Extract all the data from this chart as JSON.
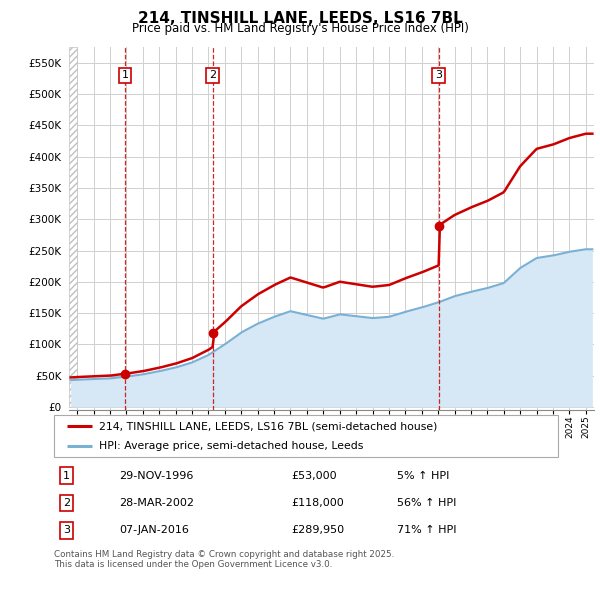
{
  "title": "214, TINSHILL LANE, LEEDS, LS16 7BL",
  "subtitle": "Price paid vs. HM Land Registry's House Price Index (HPI)",
  "ylabel_ticks": [
    "£0",
    "£50K",
    "£100K",
    "£150K",
    "£200K",
    "£250K",
    "£300K",
    "£350K",
    "£400K",
    "£450K",
    "£500K",
    "£550K"
  ],
  "ytick_values": [
    0,
    50000,
    100000,
    150000,
    200000,
    250000,
    300000,
    350000,
    400000,
    450000,
    500000,
    550000
  ],
  "xlim": [
    1993.5,
    2025.5
  ],
  "ylim": [
    -5000,
    575000
  ],
  "sale_points": [
    {
      "year": 1996.92,
      "price": 53000,
      "label": "1"
    },
    {
      "year": 2002.25,
      "price": 118000,
      "label": "2"
    },
    {
      "year": 2016.03,
      "price": 289950,
      "label": "3"
    }
  ],
  "property_color": "#cc0000",
  "hpi_color": "#7ab0d4",
  "hpi_fill_color": "#d6e8f5",
  "grid_color": "#d0d0d0",
  "legend_label_property": "214, TINSHILL LANE, LEEDS, LS16 7BL (semi-detached house)",
  "legend_label_hpi": "HPI: Average price, semi-detached house, Leeds",
  "footer_text": "Contains HM Land Registry data © Crown copyright and database right 2025.\nThis data is licensed under the Open Government Licence v3.0.",
  "table_data": [
    {
      "num": "1",
      "date": "29-NOV-1996",
      "price": "£53,000",
      "change": "5% ↑ HPI"
    },
    {
      "num": "2",
      "date": "28-MAR-2002",
      "price": "£118,000",
      "change": "56% ↑ HPI"
    },
    {
      "num": "3",
      "date": "07-JAN-2016",
      "price": "£289,950",
      "change": "71% ↑ HPI"
    }
  ],
  "hpi_years": [
    1993,
    1994,
    1995,
    1996,
    1997,
    1998,
    1999,
    2000,
    2001,
    2002,
    2003,
    2004,
    2005,
    2006,
    2007,
    2008,
    2009,
    2010,
    2011,
    2012,
    2013,
    2014,
    2015,
    2016,
    2017,
    2018,
    2019,
    2020,
    2021,
    2022,
    2023,
    2024,
    2025
  ],
  "hpi_vals": [
    42000,
    43500,
    44500,
    45500,
    48500,
    52000,
    57000,
    63000,
    71000,
    83000,
    100000,
    119000,
    133000,
    144000,
    153000,
    147000,
    141000,
    148000,
    145000,
    142000,
    144000,
    152000,
    159000,
    167000,
    177000,
    184000,
    190000,
    198000,
    222000,
    238000,
    242000,
    248000,
    252000
  ]
}
